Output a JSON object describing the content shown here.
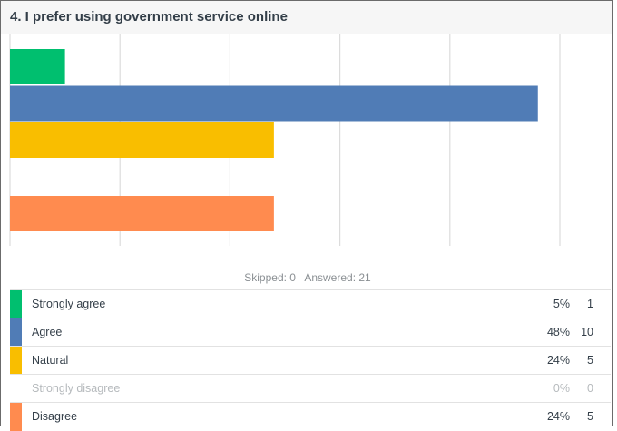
{
  "question": {
    "title": "4. I prefer using government service online"
  },
  "summary": {
    "skipped": "Skipped: 0",
    "answered": "Answered: 21"
  },
  "chart_data": {
    "type": "bar",
    "orientation": "horizontal",
    "title": "4. I prefer using government service online",
    "categories": [
      "Strongly agree",
      "Agree",
      "Natural",
      "Strongly disagree",
      "Disagree"
    ],
    "values": [
      5,
      48,
      24,
      0,
      24
    ],
    "counts": [
      1,
      10,
      5,
      0,
      5
    ],
    "colors": [
      "#00bf6f",
      "#507cb6",
      "#f9be00",
      "#cccccc",
      "#ff8b4f"
    ],
    "xlim": [
      0,
      50
    ],
    "gridlines": [
      0,
      10,
      20,
      30,
      40,
      50
    ],
    "grid": true,
    "legend": "bottom"
  },
  "legend": {
    "rows": [
      {
        "label": "Strongly agree",
        "percent": "5%",
        "count": "1",
        "color": "#00bf6f"
      },
      {
        "label": "Agree",
        "percent": "48%",
        "count": "10",
        "color": "#507cb6"
      },
      {
        "label": "Natural",
        "percent": "24%",
        "count": "5",
        "color": "#f9be00"
      },
      {
        "label": "Strongly disagree",
        "percent": "0%",
        "count": "0",
        "color": "#ffffff"
      },
      {
        "label": "Disagree",
        "percent": "24%",
        "count": "5",
        "color": "#ff8b4f"
      }
    ]
  }
}
